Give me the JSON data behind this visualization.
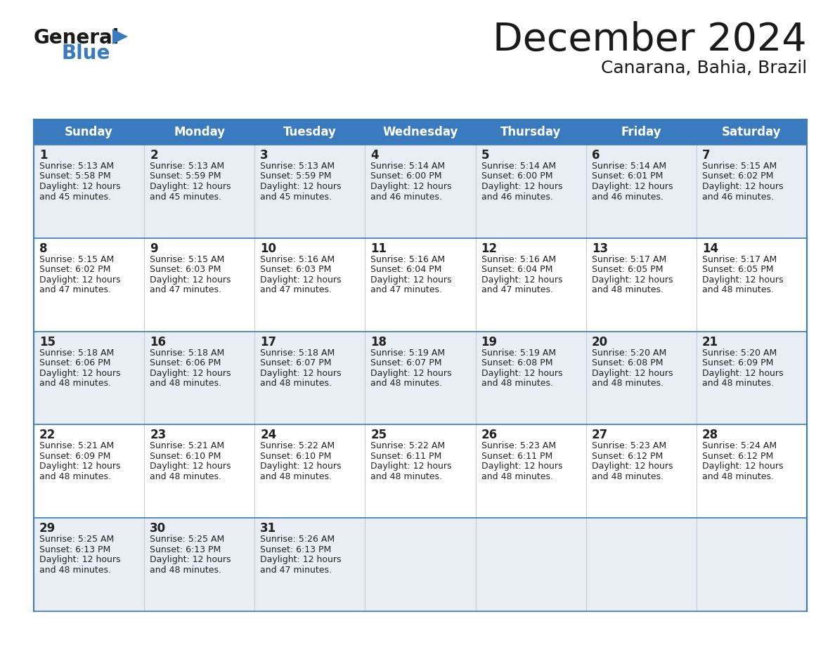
{
  "title": "December 2024",
  "subtitle": "Canarana, Bahia, Brazil",
  "header_bg": "#3a7abf",
  "header_text": "#ffffff",
  "days_of_week": [
    "Sunday",
    "Monday",
    "Tuesday",
    "Wednesday",
    "Thursday",
    "Friday",
    "Saturday"
  ],
  "row_bg_odd": "#e8eef4",
  "row_bg_even": "#ffffff",
  "border_color": "#3a7abf",
  "text_color": "#222222",
  "cell_line_color": "#b0b8c8",
  "calendar": [
    [
      {
        "day": 1,
        "sunrise": "5:13 AM",
        "sunset": "5:58 PM",
        "daylight_h": "12 hours",
        "daylight_m": "45 minutes"
      },
      {
        "day": 2,
        "sunrise": "5:13 AM",
        "sunset": "5:59 PM",
        "daylight_h": "12 hours",
        "daylight_m": "45 minutes"
      },
      {
        "day": 3,
        "sunrise": "5:13 AM",
        "sunset": "5:59 PM",
        "daylight_h": "12 hours",
        "daylight_m": "45 minutes"
      },
      {
        "day": 4,
        "sunrise": "5:14 AM",
        "sunset": "6:00 PM",
        "daylight_h": "12 hours",
        "daylight_m": "46 minutes"
      },
      {
        "day": 5,
        "sunrise": "5:14 AM",
        "sunset": "6:00 PM",
        "daylight_h": "12 hours",
        "daylight_m": "46 minutes"
      },
      {
        "day": 6,
        "sunrise": "5:14 AM",
        "sunset": "6:01 PM",
        "daylight_h": "12 hours",
        "daylight_m": "46 minutes"
      },
      {
        "day": 7,
        "sunrise": "5:15 AM",
        "sunset": "6:02 PM",
        "daylight_h": "12 hours",
        "daylight_m": "46 minutes"
      }
    ],
    [
      {
        "day": 8,
        "sunrise": "5:15 AM",
        "sunset": "6:02 PM",
        "daylight_h": "12 hours",
        "daylight_m": "47 minutes"
      },
      {
        "day": 9,
        "sunrise": "5:15 AM",
        "sunset": "6:03 PM",
        "daylight_h": "12 hours",
        "daylight_m": "47 minutes"
      },
      {
        "day": 10,
        "sunrise": "5:16 AM",
        "sunset": "6:03 PM",
        "daylight_h": "12 hours",
        "daylight_m": "47 minutes"
      },
      {
        "day": 11,
        "sunrise": "5:16 AM",
        "sunset": "6:04 PM",
        "daylight_h": "12 hours",
        "daylight_m": "47 minutes"
      },
      {
        "day": 12,
        "sunrise": "5:16 AM",
        "sunset": "6:04 PM",
        "daylight_h": "12 hours",
        "daylight_m": "47 minutes"
      },
      {
        "day": 13,
        "sunrise": "5:17 AM",
        "sunset": "6:05 PM",
        "daylight_h": "12 hours",
        "daylight_m": "48 minutes"
      },
      {
        "day": 14,
        "sunrise": "5:17 AM",
        "sunset": "6:05 PM",
        "daylight_h": "12 hours",
        "daylight_m": "48 minutes"
      }
    ],
    [
      {
        "day": 15,
        "sunrise": "5:18 AM",
        "sunset": "6:06 PM",
        "daylight_h": "12 hours",
        "daylight_m": "48 minutes"
      },
      {
        "day": 16,
        "sunrise": "5:18 AM",
        "sunset": "6:06 PM",
        "daylight_h": "12 hours",
        "daylight_m": "48 minutes"
      },
      {
        "day": 17,
        "sunrise": "5:18 AM",
        "sunset": "6:07 PM",
        "daylight_h": "12 hours",
        "daylight_m": "48 minutes"
      },
      {
        "day": 18,
        "sunrise": "5:19 AM",
        "sunset": "6:07 PM",
        "daylight_h": "12 hours",
        "daylight_m": "48 minutes"
      },
      {
        "day": 19,
        "sunrise": "5:19 AM",
        "sunset": "6:08 PM",
        "daylight_h": "12 hours",
        "daylight_m": "48 minutes"
      },
      {
        "day": 20,
        "sunrise": "5:20 AM",
        "sunset": "6:08 PM",
        "daylight_h": "12 hours",
        "daylight_m": "48 minutes"
      },
      {
        "day": 21,
        "sunrise": "5:20 AM",
        "sunset": "6:09 PM",
        "daylight_h": "12 hours",
        "daylight_m": "48 minutes"
      }
    ],
    [
      {
        "day": 22,
        "sunrise": "5:21 AM",
        "sunset": "6:09 PM",
        "daylight_h": "12 hours",
        "daylight_m": "48 minutes"
      },
      {
        "day": 23,
        "sunrise": "5:21 AM",
        "sunset": "6:10 PM",
        "daylight_h": "12 hours",
        "daylight_m": "48 minutes"
      },
      {
        "day": 24,
        "sunrise": "5:22 AM",
        "sunset": "6:10 PM",
        "daylight_h": "12 hours",
        "daylight_m": "48 minutes"
      },
      {
        "day": 25,
        "sunrise": "5:22 AM",
        "sunset": "6:11 PM",
        "daylight_h": "12 hours",
        "daylight_m": "48 minutes"
      },
      {
        "day": 26,
        "sunrise": "5:23 AM",
        "sunset": "6:11 PM",
        "daylight_h": "12 hours",
        "daylight_m": "48 minutes"
      },
      {
        "day": 27,
        "sunrise": "5:23 AM",
        "sunset": "6:12 PM",
        "daylight_h": "12 hours",
        "daylight_m": "48 minutes"
      },
      {
        "day": 28,
        "sunrise": "5:24 AM",
        "sunset": "6:12 PM",
        "daylight_h": "12 hours",
        "daylight_m": "48 minutes"
      }
    ],
    [
      {
        "day": 29,
        "sunrise": "5:25 AM",
        "sunset": "6:13 PM",
        "daylight_h": "12 hours",
        "daylight_m": "48 minutes"
      },
      {
        "day": 30,
        "sunrise": "5:25 AM",
        "sunset": "6:13 PM",
        "daylight_h": "12 hours",
        "daylight_m": "48 minutes"
      },
      {
        "day": 31,
        "sunrise": "5:26 AM",
        "sunset": "6:13 PM",
        "daylight_h": "12 hours",
        "daylight_m": "47 minutes"
      },
      null,
      null,
      null,
      null
    ]
  ]
}
